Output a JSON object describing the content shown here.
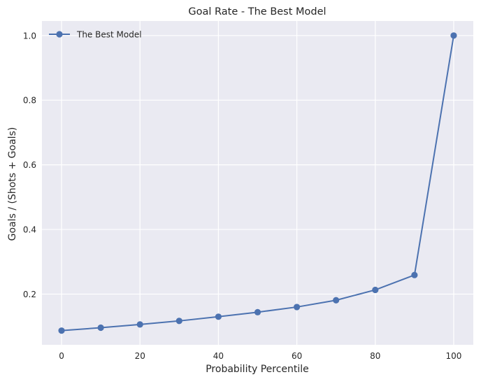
{
  "chart_data": {
    "type": "line",
    "title": "Goal Rate - The Best Model",
    "xlabel": "Probability Percentile",
    "ylabel": "Goals / (Shots + Goals)",
    "xlim": [
      -5,
      105
    ],
    "ylim": [
      0.043,
      1.045
    ],
    "xticks": [
      0,
      20,
      40,
      60,
      80,
      100
    ],
    "yticks": [
      0.2,
      0.4,
      0.6,
      0.8,
      1.0
    ],
    "ytick_labels": [
      "0.2",
      "0.4",
      "0.6",
      "0.8",
      "1.0"
    ],
    "grid": true,
    "legend_position": "upper-left",
    "colors": {
      "background": "#eaeaf2",
      "grid": "#ffffff",
      "line": "#4c72b0"
    },
    "series": [
      {
        "name": "The Best Model",
        "marker": "circle",
        "x": [
          0,
          10,
          20,
          30,
          40,
          50,
          60,
          70,
          80,
          90,
          100
        ],
        "y": [
          0.087,
          0.096,
          0.106,
          0.117,
          0.13,
          0.144,
          0.16,
          0.181,
          0.213,
          0.259,
          1.0
        ]
      }
    ]
  }
}
